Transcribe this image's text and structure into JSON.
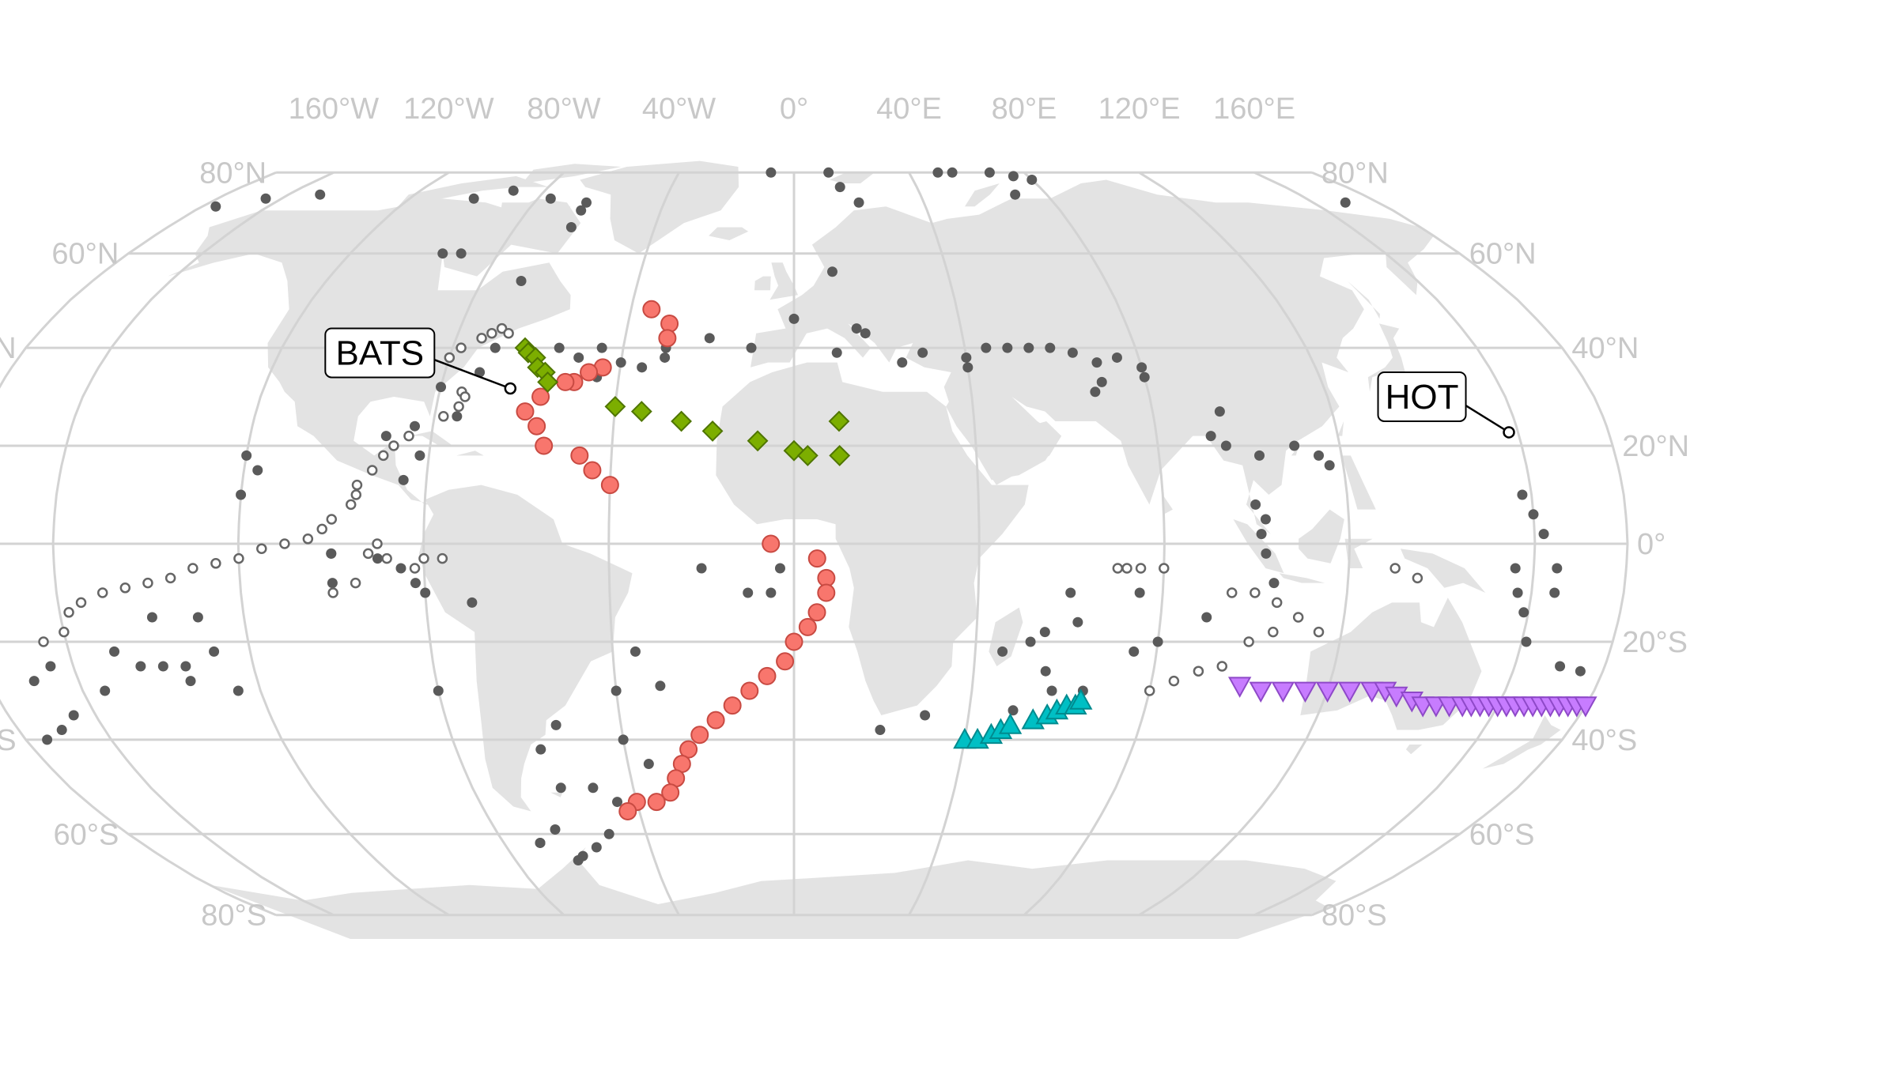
{
  "map": {
    "projection": "robinson",
    "central_meridian": 0,
    "grid_on": true,
    "colors": {
      "background": "#ffffff",
      "land": "#e3e3e3",
      "graticule": "#d3d3d3",
      "tick_label": "#c8c8c8",
      "survey_point": "#5a5a5a",
      "open_station": "#666666"
    },
    "lon_labels": [
      {
        "value": 120,
        "text": "120°E"
      },
      {
        "value": 160,
        "text": "160°E"
      },
      {
        "value": -160,
        "text": "160°W"
      },
      {
        "value": -120,
        "text": "120°W"
      },
      {
        "value": -80,
        "text": "80°W"
      },
      {
        "value": -40,
        "text": "40°W"
      },
      {
        "value": 0,
        "text": "0°"
      },
      {
        "value": 40,
        "text": "40°E"
      },
      {
        "value": 80,
        "text": "80°E"
      }
    ],
    "lat_labels": [
      {
        "value": 80,
        "text": "80°N"
      },
      {
        "value": 60,
        "text": "60°N"
      },
      {
        "value": 40,
        "text": "40°N"
      },
      {
        "value": 20,
        "text": "20°N"
      },
      {
        "value": 0,
        "text": "0°"
      },
      {
        "value": -20,
        "text": "20°S"
      },
      {
        "value": -40,
        "text": "40°S"
      },
      {
        "value": -60,
        "text": "60°S"
      },
      {
        "value": -80,
        "text": "80°S"
      }
    ],
    "callouts": [
      {
        "id": "hot",
        "text": "HOT",
        "lon": 158,
        "lat": 22.75
      },
      {
        "id": "bats",
        "text": "BATS",
        "lon": -64.2,
        "lat": 31.7
      }
    ]
  },
  "chart_data": {
    "type": "scatter",
    "x_unit": "longitude (degrees)",
    "y_unit": "latitude (degrees)",
    "legend": "none",
    "series": [
      {
        "marker": "filled-dot",
        "color": "#5a5a5a",
        "points": [
          [
            -8,
            80
          ],
          [
            12,
            80
          ],
          [
            -90,
            75
          ],
          [
            -100,
            73
          ],
          [
            -150,
            74
          ],
          [
            -165,
            73
          ],
          [
            170,
            72
          ],
          [
            -176,
            71
          ],
          [
            -76,
            73
          ],
          [
            -64,
            72
          ],
          [
            -64,
            70
          ],
          [
            -64,
            66
          ],
          [
            15,
            76
          ],
          [
            20,
            72
          ],
          [
            50,
            80
          ],
          [
            55,
            80
          ],
          [
            68,
            80
          ],
          [
            75,
            79
          ],
          [
            80,
            78
          ],
          [
            70,
            74
          ],
          [
            10,
            56
          ],
          [
            15,
            44
          ],
          [
            17,
            43
          ],
          [
            10,
            39
          ],
          [
            25,
            37
          ],
          [
            30,
            39
          ],
          [
            40,
            38
          ],
          [
            40,
            36
          ],
          [
            45,
            40
          ],
          [
            50,
            40
          ],
          [
            55,
            40
          ],
          [
            60,
            40
          ],
          [
            65,
            39
          ],
          [
            70,
            37
          ],
          [
            75,
            38
          ],
          [
            80,
            36
          ],
          [
            80,
            34
          ],
          [
            70,
            33
          ],
          [
            68,
            31
          ],
          [
            95,
            27
          ],
          [
            92,
            22
          ],
          [
            95,
            20
          ],
          [
            102,
            18
          ],
          [
            110,
            20
          ],
          [
            115,
            18
          ],
          [
            117,
            16
          ],
          [
            100,
            8
          ],
          [
            102,
            5
          ],
          [
            101,
            2
          ],
          [
            102,
            -2
          ],
          [
            104,
            -8
          ],
          [
            80,
            -5
          ],
          [
            60,
            -10
          ],
          [
            62,
            -16
          ],
          [
            55,
            -18
          ],
          [
            52,
            -20
          ],
          [
            46,
            -22
          ],
          [
            56,
            -26
          ],
          [
            58,
            -30
          ],
          [
            50,
            -34
          ],
          [
            75,
            -22
          ],
          [
            65,
            -30
          ],
          [
            80,
            -20
          ],
          [
            90,
            -15
          ],
          [
            75,
            -10
          ],
          [
            -40,
            -30
          ],
          [
            -30,
            -29
          ],
          [
            -35,
            -22
          ],
          [
            -20,
            -5
          ],
          [
            -10,
            -10
          ],
          [
            20,
            -38
          ],
          [
            30,
            -35
          ],
          [
            -5,
            -10
          ],
          [
            -3,
            -5
          ],
          [
            -120,
            18
          ],
          [
            -117,
            15
          ],
          [
            -120,
            10
          ],
          [
            -130,
            -15
          ],
          [
            -128,
            -22
          ],
          [
            -125,
            -30
          ],
          [
            -135,
            -28
          ],
          [
            -140,
            -25
          ],
          [
            -155,
            -30
          ],
          [
            -170,
            -28
          ],
          [
            -165,
            -35
          ],
          [
            -170,
            -38
          ],
          [
            -175,
            -40
          ],
          [
            -100,
            -2
          ],
          [
            -90,
            -3
          ],
          [
            -85,
            -5
          ],
          [
            -82,
            -8
          ],
          [
            -80,
            -10
          ],
          [
            -70,
            -12
          ],
          [
            -55,
            -37
          ],
          [
            -60,
            -42
          ],
          [
            -58,
            -50
          ],
          [
            -50,
            -50
          ],
          [
            -50,
            -60
          ],
          [
            -55,
            -63
          ],
          [
            -60,
            -65
          ],
          [
            -62,
            -66
          ],
          [
            -70,
            -62
          ],
          [
            -40,
            -40
          ],
          [
            -35,
            -45
          ],
          [
            -70,
            -62
          ],
          [
            -64,
            -59
          ],
          [
            -45,
            -53
          ],
          [
            -80,
            -30
          ],
          [
            -100,
            -2
          ],
          [
            -100,
            -8
          ],
          [
            -85,
            13
          ],
          [
            -82,
            18
          ],
          [
            -90,
            22
          ],
          [
            -84,
            24
          ],
          [
            -75,
            26
          ],
          [
            -80,
            32
          ],
          [
            -72,
            35
          ],
          [
            -70,
            40
          ],
          [
            -55,
            40
          ],
          [
            -50,
            38
          ],
          [
            -45,
            34
          ],
          [
            -30,
            40
          ],
          [
            -20,
            42
          ],
          [
            -10,
            40
          ],
          [
            0,
            46
          ],
          [
            -70,
            54
          ],
          [
            -90,
            60
          ],
          [
            -95,
            60
          ],
          [
            -45,
            40
          ],
          [
            -40,
            37
          ],
          [
            -35,
            36
          ],
          [
            -30,
            38
          ],
          [
            156,
            -5
          ],
          [
            157,
            -10
          ],
          [
            159,
            -14
          ],
          [
            161,
            -20
          ],
          [
            170,
            -25
          ],
          [
            175,
            -26
          ],
          [
            -165,
            -25
          ],
          [
            -150,
            -22
          ],
          [
            -145,
            -25
          ],
          [
            -135,
            -25
          ],
          [
            -140,
            -15
          ],
          [
            158,
            10
          ],
          [
            160,
            6
          ],
          [
            162,
            2
          ],
          [
            165,
            -5
          ],
          [
            165,
            -10
          ],
          [
            -175,
            -5
          ]
        ]
      },
      {
        "marker": "open-circle",
        "color": "#666666",
        "points": [
          [
            130,
            -5
          ],
          [
            135,
            -7
          ],
          [
            -75,
            28
          ],
          [
            -78,
            26
          ],
          [
            -85,
            22
          ],
          [
            -88,
            20
          ],
          [
            -90,
            18
          ],
          [
            -92,
            15
          ],
          [
            -95,
            12
          ],
          [
            -95,
            10
          ],
          [
            -96,
            8
          ],
          [
            -100,
            5
          ],
          [
            -102,
            3
          ],
          [
            -105,
            1
          ],
          [
            -110,
            0
          ],
          [
            -115,
            -1
          ],
          [
            -120,
            -3
          ],
          [
            -125,
            -4
          ],
          [
            -130,
            -5
          ],
          [
            -135,
            -7
          ],
          [
            -140,
            -8
          ],
          [
            -145,
            -9
          ],
          [
            -150,
            -10
          ],
          [
            -155,
            -12
          ],
          [
            -158,
            -14
          ],
          [
            -160,
            -18
          ],
          [
            -165,
            -20
          ],
          [
            -90,
            0
          ],
          [
            -92,
            -2
          ],
          [
            -88,
            -3
          ],
          [
            -80,
            -3
          ],
          [
            -82,
            -5
          ],
          [
            -76,
            -3
          ],
          [
            -78,
            40
          ],
          [
            -80,
            38
          ],
          [
            -74,
            42
          ],
          [
            -72,
            43
          ],
          [
            -70,
            44
          ],
          [
            -68,
            43
          ],
          [
            -75,
            31
          ],
          [
            -74,
            30
          ],
          [
            70,
            -5
          ],
          [
            72,
            -5
          ],
          [
            75,
            -5
          ],
          [
            80,
            -5
          ],
          [
            95,
            -10
          ],
          [
            100,
            -10
          ],
          [
            105,
            -12
          ],
          [
            110,
            -15
          ],
          [
            115,
            -18
          ],
          [
            80,
            -30
          ],
          [
            85,
            -28
          ],
          [
            90,
            -26
          ],
          [
            95,
            -25
          ],
          [
            100,
            -20
          ],
          [
            105,
            -18
          ],
          [
            -95,
            -8
          ],
          [
            -100,
            -10
          ]
        ]
      },
      {
        "marker": "circle",
        "color": "#f8766d",
        "points": [
          [
            -35,
            48
          ],
          [
            -30,
            45
          ],
          [
            -30,
            42
          ],
          [
            -44,
            36
          ],
          [
            -47,
            35
          ],
          [
            -50,
            33
          ],
          [
            -52,
            33
          ],
          [
            -57,
            30
          ],
          [
            -60,
            27
          ],
          [
            -57,
            24
          ],
          [
            -55,
            20
          ],
          [
            -47,
            18
          ],
          [
            -44,
            15
          ],
          [
            -40,
            12
          ],
          [
            -5,
            0
          ],
          [
            5,
            -3
          ],
          [
            7,
            -7
          ],
          [
            7,
            -10
          ],
          [
            5,
            -14
          ],
          [
            3,
            -17
          ],
          [
            0,
            -20
          ],
          [
            -2,
            -24
          ],
          [
            -6,
            -27
          ],
          [
            -10,
            -30
          ],
          [
            -14,
            -33
          ],
          [
            -18,
            -36
          ],
          [
            -22,
            -39
          ],
          [
            -25,
            -42
          ],
          [
            -27,
            -45
          ],
          [
            -29,
            -48
          ],
          [
            -31,
            -51
          ],
          [
            -35,
            -53
          ],
          [
            -40,
            -53
          ],
          [
            -43,
            -55
          ]
        ]
      },
      {
        "marker": "diamond",
        "color": "#7cae00",
        "points": [
          [
            -63,
            40
          ],
          [
            -62,
            39
          ],
          [
            -60,
            38
          ],
          [
            -59,
            36
          ],
          [
            -57,
            35
          ],
          [
            -56,
            33
          ],
          [
            -40,
            28
          ],
          [
            -34,
            27
          ],
          [
            -25,
            25
          ],
          [
            -18,
            23
          ],
          [
            -8,
            21
          ],
          [
            0,
            19
          ],
          [
            3,
            18
          ],
          [
            10,
            18
          ],
          [
            10,
            25
          ]
        ]
      },
      {
        "marker": "triangle-up",
        "color": "#00bfc4",
        "points": [
          [
            40,
            -40
          ],
          [
            43,
            -40
          ],
          [
            46,
            -39
          ],
          [
            48,
            -38
          ],
          [
            50,
            -37
          ],
          [
            55,
            -36
          ],
          [
            58,
            -35
          ],
          [
            60,
            -34
          ],
          [
            62,
            -33
          ],
          [
            64,
            -33
          ],
          [
            65,
            -32
          ]
        ]
      },
      {
        "marker": "triangle-down",
        "color": "#c77cff",
        "points": [
          [
            100,
            -29
          ],
          [
            105,
            -30
          ],
          [
            110,
            -30
          ],
          [
            115,
            -30
          ],
          [
            120,
            -30
          ],
          [
            125,
            -30
          ],
          [
            130,
            -30
          ],
          [
            133,
            -30
          ],
          [
            136,
            -31
          ],
          [
            140,
            -32
          ],
          [
            143,
            -33
          ],
          [
            146,
            -33
          ],
          [
            149,
            -33
          ],
          [
            152,
            -33
          ],
          [
            154,
            -33
          ],
          [
            156,
            -33
          ],
          [
            158,
            -33
          ],
          [
            160,
            -33
          ],
          [
            162,
            -33
          ],
          [
            164,
            -33
          ],
          [
            166,
            -33
          ],
          [
            168,
            -33
          ],
          [
            170,
            -33
          ],
          [
            172,
            -33
          ],
          [
            174,
            -33
          ],
          [
            176,
            -33
          ],
          [
            178,
            -33
          ],
          [
            180,
            -33
          ]
        ]
      }
    ]
  }
}
